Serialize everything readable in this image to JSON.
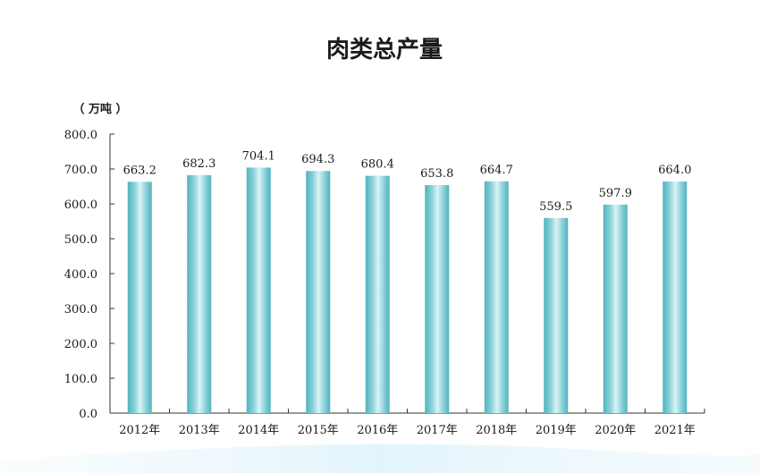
{
  "chart_data": {
    "type": "bar",
    "title": "肉类总产量",
    "unit_label": "（ 万吨 ）",
    "categories": [
      "2012年",
      "2013年",
      "2014年",
      "2015年",
      "2016年",
      "2017年",
      "2018年",
      "2019年",
      "2020年",
      "2021年"
    ],
    "values": [
      663.2,
      682.3,
      704.1,
      694.3,
      680.4,
      653.8,
      664.7,
      559.5,
      597.9,
      664.0
    ],
    "value_labels": [
      "663.2",
      "682.3",
      "704.1",
      "694.3",
      "680.4",
      "653.8",
      "664.7",
      "559.5",
      "597.9",
      "664.0"
    ],
    "ylim": [
      0,
      800
    ],
    "yticks": [
      "0.0",
      "100.0",
      "200.0",
      "300.0",
      "400.0",
      "500.0",
      "600.0",
      "700.0",
      "800.0"
    ],
    "grid": false,
    "colors": {
      "bar_edge": "#4fb3bf",
      "bar_light": "#d9f4f6",
      "bar_mid": "#8fd3da",
      "bg_wave": "#dff2fb"
    }
  }
}
